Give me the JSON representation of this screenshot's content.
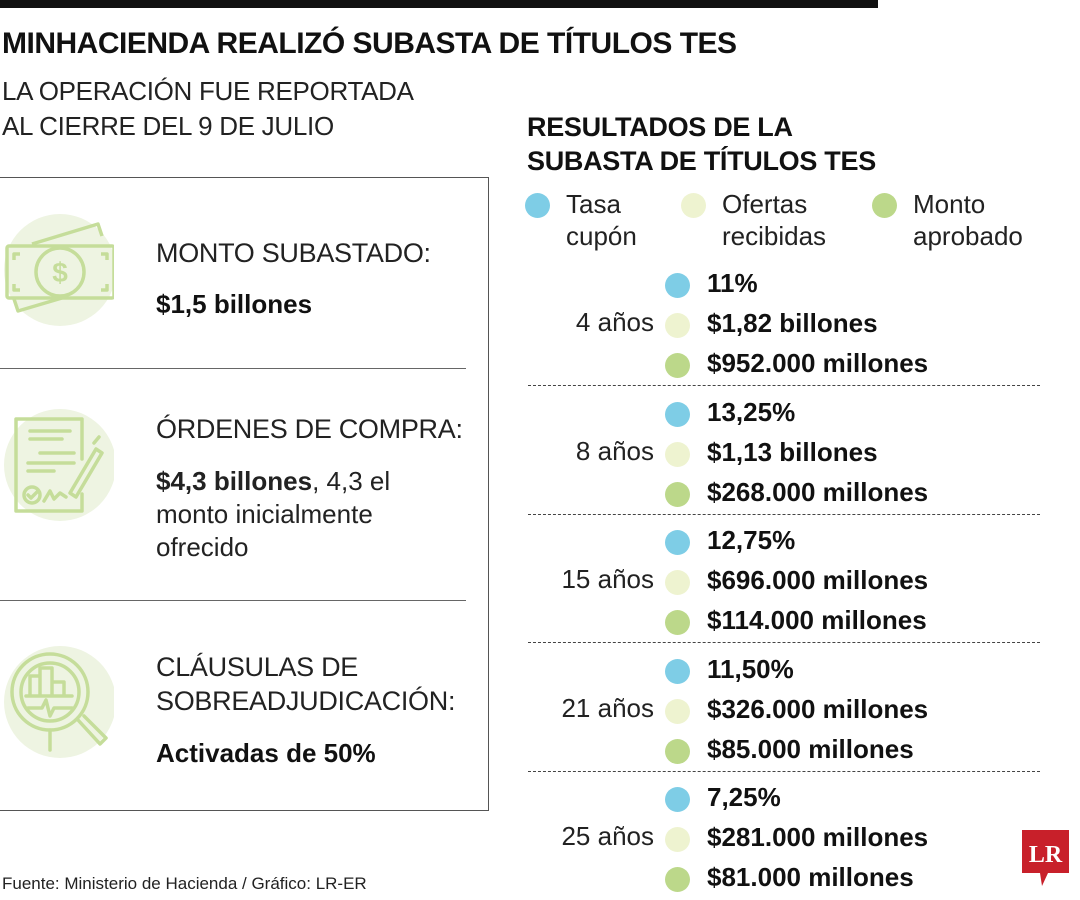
{
  "header": {
    "title": "MINHACIENDA REALIZÓ SUBASTA DE TÍTULOS TES",
    "subtitle_line1": "LA OPERACIÓN FUE REPORTADA",
    "subtitle_line2": "AL CIERRE DEL 9 DE JULIO"
  },
  "summary": [
    {
      "icon": "money-bill-icon",
      "heading": "MONTO SUBASTADO:",
      "value": "$1,5 billones",
      "extra": ""
    },
    {
      "icon": "signed-document-icon",
      "heading": "ÓRDENES DE COMPRA:",
      "value": "$4,3 billones",
      "extra": ", 4,3 el monto inicialmente ofrecido"
    },
    {
      "icon": "magnifier-chart-icon",
      "heading_line1": "CLÁUSULAS DE",
      "heading_line2": "SOBREADJUDICACIÓN:",
      "value": "Activadas de 50%"
    }
  ],
  "results": {
    "title_line1": "RESULTADOS DE LA",
    "title_line2": "SUBASTA DE TÍTULOS TES",
    "legend": [
      {
        "line1": "Tasa",
        "line2": "cupón",
        "color": "#7ecde6"
      },
      {
        "line1": "Ofertas",
        "line2": "recibidas",
        "color": "#eef3d0"
      },
      {
        "line1": "Monto",
        "line2": "aprobado",
        "color": "#bcd88a"
      }
    ],
    "groups": [
      {
        "term": "4 años",
        "rate": "11%",
        "offers": "$1,82 billones",
        "approved": "$952.000 millones"
      },
      {
        "term": "8 años",
        "rate": "13,25%",
        "offers": "$1,13 billones",
        "approved": "$268.000 millones"
      },
      {
        "term": "15 años",
        "rate": "12,75%",
        "offers": "$696.000 millones",
        "approved": "$114.000 millones"
      },
      {
        "term": "21 años",
        "rate": "11,50%",
        "offers": "$326.000 millones",
        "approved": "$85.000 millones"
      },
      {
        "term": "25 años",
        "rate": "7,25%",
        "offers": "$281.000 millones",
        "approved": "$81.000 millones"
      }
    ]
  },
  "footer": "Fuente: Ministerio de Hacienda / Gráfico: LR-ER",
  "logo": {
    "text": "LR",
    "color": "#c8202a"
  },
  "colors": {
    "icon": "#c5dd9a",
    "icon_bg": "#eef4e2"
  }
}
